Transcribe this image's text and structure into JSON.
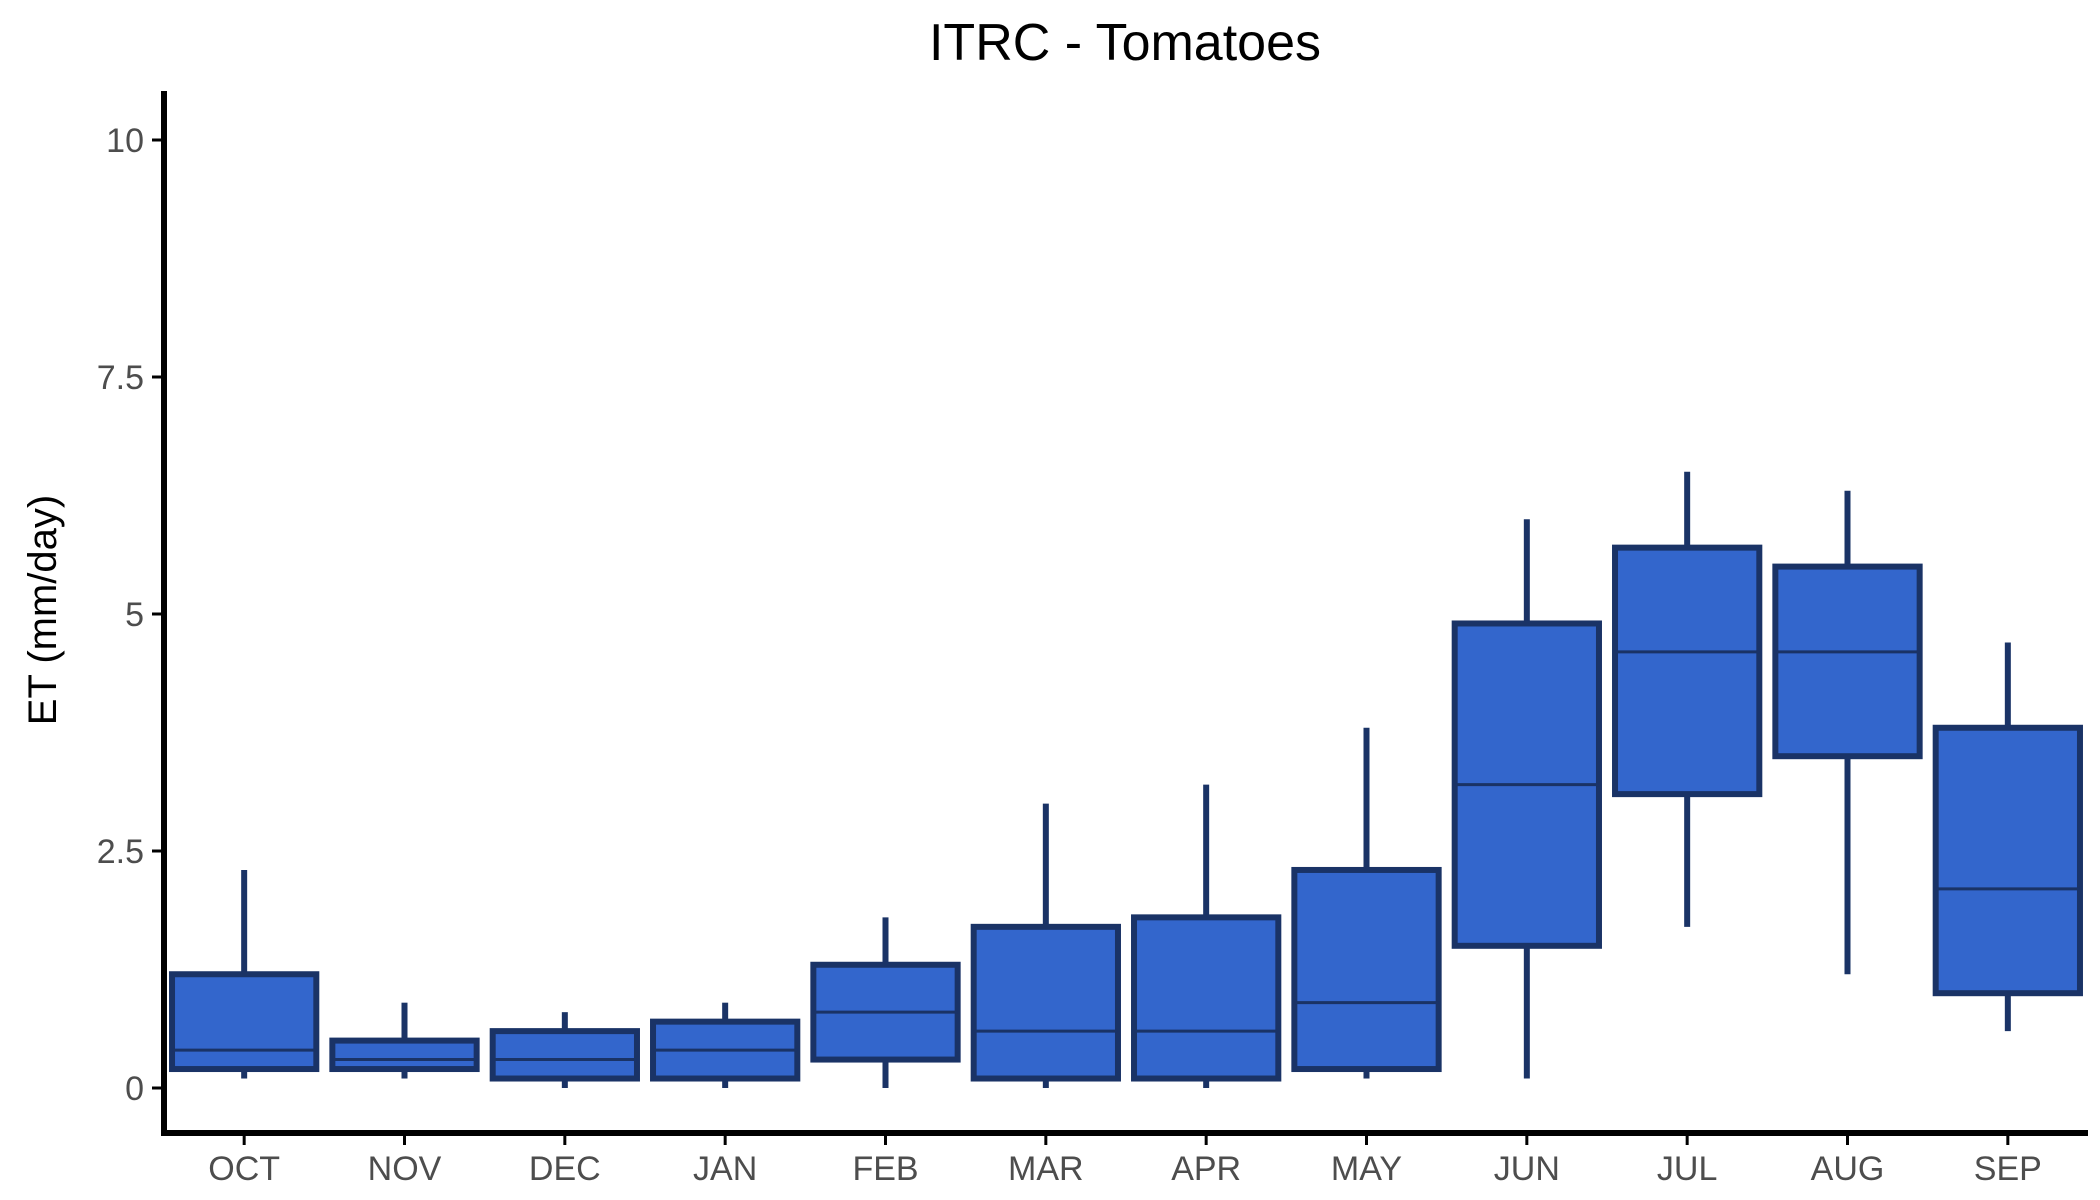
{
  "chart_data": {
    "type": "box",
    "title": "ITRC - Tomatoes",
    "xlabel": "",
    "ylabel": "ET (mm/day)",
    "ylim": [
      -0.5,
      10.5
    ],
    "yticks": [
      0,
      2.5,
      5,
      7.5,
      10
    ],
    "ytick_labels": [
      "0",
      "2.5",
      "5",
      "7.5",
      "10"
    ],
    "categories": [
      "OCT",
      "NOV",
      "DEC",
      "JAN",
      "FEB",
      "MAR",
      "APR",
      "MAY",
      "JUN",
      "JUL",
      "AUG",
      "SEP"
    ],
    "boxes": [
      {
        "min": 0.1,
        "q1": 0.2,
        "median": 0.4,
        "q3": 1.2,
        "max": 2.3
      },
      {
        "min": 0.1,
        "q1": 0.2,
        "median": 0.3,
        "q3": 0.5,
        "max": 0.9
      },
      {
        "min": 0.0,
        "q1": 0.1,
        "median": 0.3,
        "q3": 0.6,
        "max": 0.8
      },
      {
        "min": 0.0,
        "q1": 0.1,
        "median": 0.4,
        "q3": 0.7,
        "max": 0.9
      },
      {
        "min": 0.0,
        "q1": 0.3,
        "median": 0.8,
        "q3": 1.3,
        "max": 1.8
      },
      {
        "min": 0.0,
        "q1": 0.1,
        "median": 0.6,
        "q3": 1.7,
        "max": 3.0
      },
      {
        "min": 0.0,
        "q1": 0.1,
        "median": 0.6,
        "q3": 1.8,
        "max": 3.2
      },
      {
        "min": 0.1,
        "q1": 0.2,
        "median": 0.9,
        "q3": 2.3,
        "max": 3.8
      },
      {
        "min": 0.1,
        "q1": 1.5,
        "median": 3.2,
        "q3": 4.9,
        "max": 6.0
      },
      {
        "min": 1.7,
        "q1": 3.1,
        "median": 4.6,
        "q3": 5.7,
        "max": 6.5
      },
      {
        "min": 1.2,
        "q1": 3.5,
        "median": 4.6,
        "q3": 5.5,
        "max": 6.3
      },
      {
        "min": 0.6,
        "q1": 1.0,
        "median": 2.1,
        "q3": 3.8,
        "max": 4.7
      }
    ],
    "grid": false,
    "legend": "none",
    "colors": {
      "fill": "#3366cc",
      "stroke": "#1a3366",
      "axis": "#000000",
      "tick_text": "#4d4d4d"
    }
  }
}
